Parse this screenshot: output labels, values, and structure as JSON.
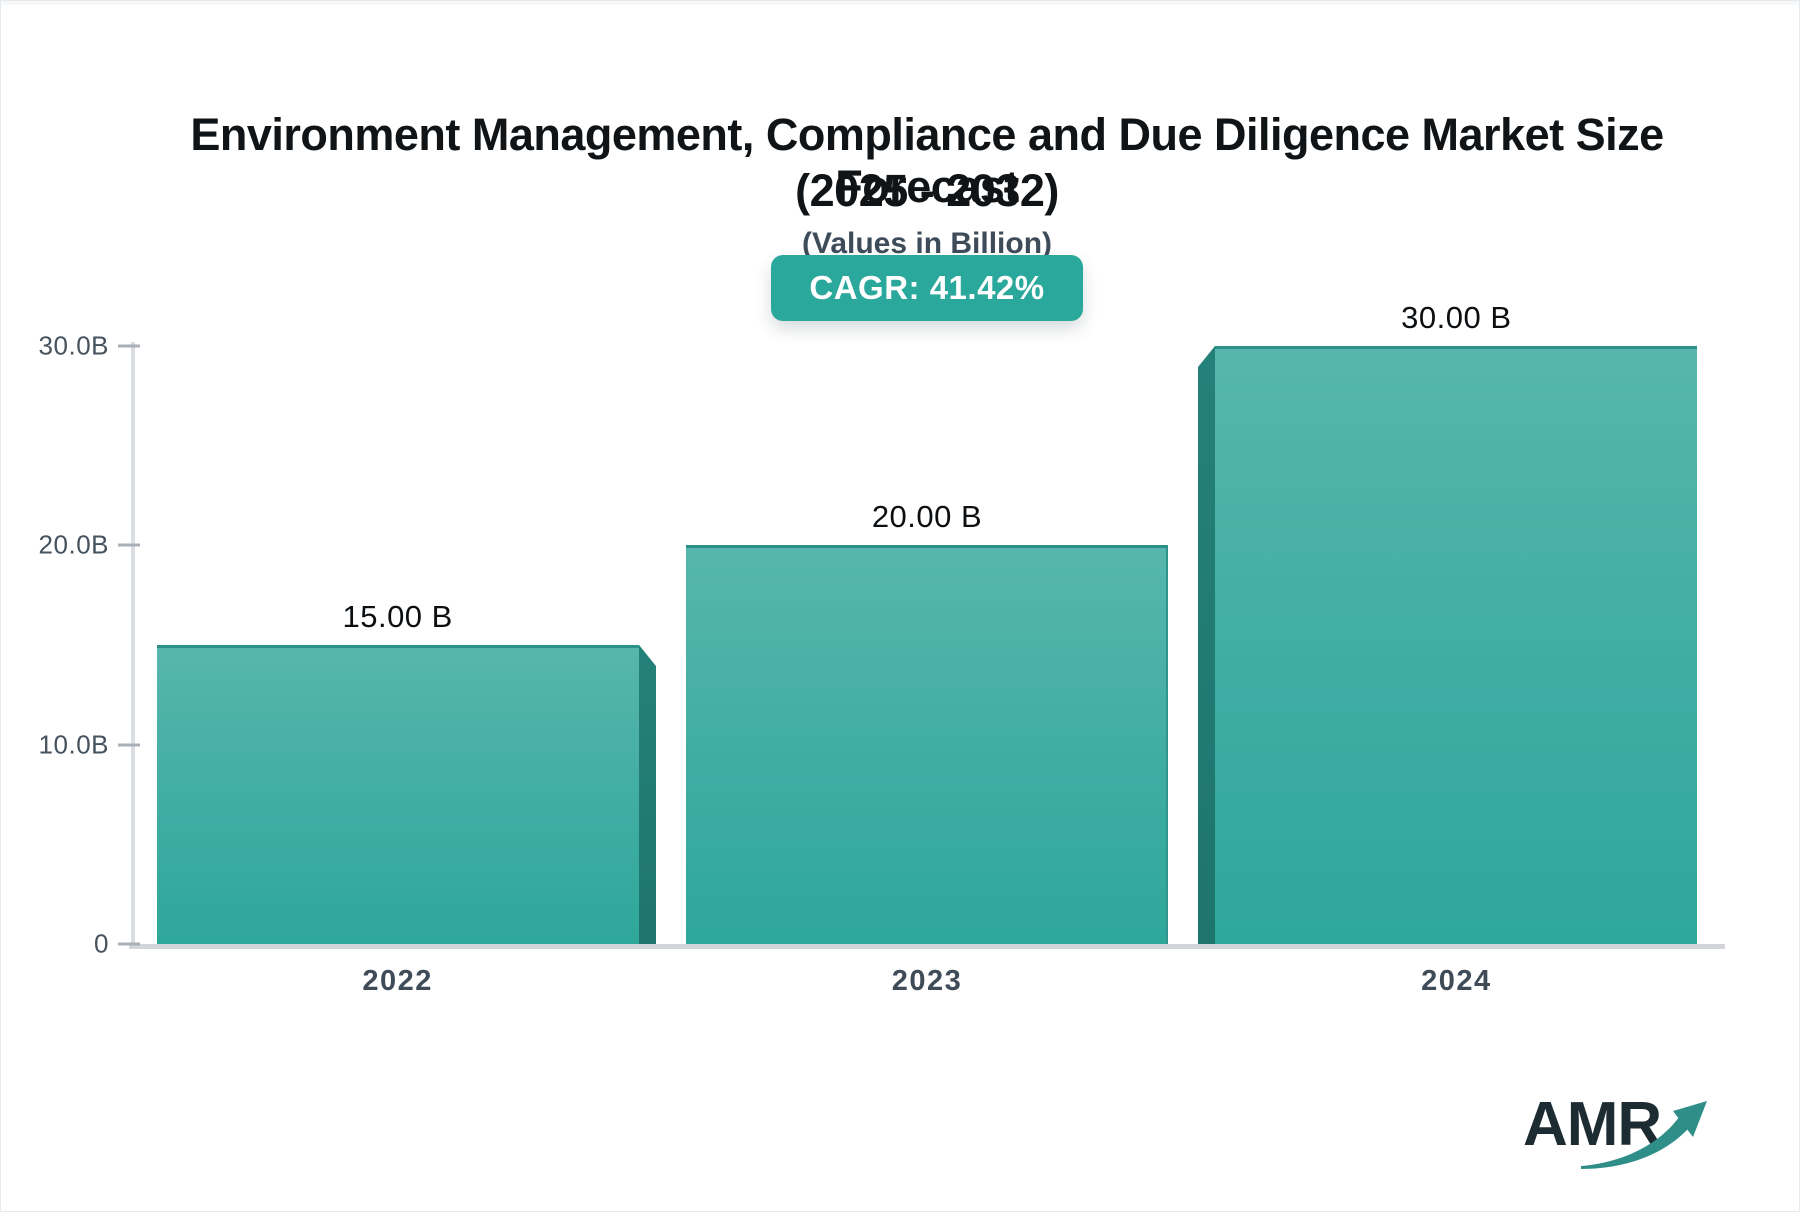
{
  "header": {
    "title_line1": "Environment Management, Compliance and Due Diligence Market Size Forecast",
    "title_line2": "(2025 - 2032)",
    "subtitle": "(Values in Billion)",
    "cagr_label": "CAGR: 41.42%"
  },
  "chart_data": {
    "type": "bar",
    "title": "Environment Management, Compliance and Due Diligence Market Size Forecast (2025 - 2032)",
    "subtitle": "(Values in Billion)",
    "cagr_percent": 41.42,
    "categories": [
      "2022",
      "2023",
      "2024"
    ],
    "values": [
      15,
      20,
      30
    ],
    "value_labels": [
      "15.00 B",
      "20.00 B",
      "30.00 B"
    ],
    "unit": "Billion",
    "ylim": [
      0,
      30
    ],
    "yticks": [
      {
        "label": "30.0B",
        "value": 30
      },
      {
        "label": "20.0B",
        "value": 20
      },
      {
        "label": "10.0B",
        "value": 10
      },
      {
        "label": "0",
        "value": 0
      }
    ],
    "grid": false,
    "legend": "none",
    "colors": {
      "bar_top": "#57b6ad",
      "bar_bottom": "#2ea79b",
      "bar_side_3d": "#1e756e",
      "bar_border": "#2b9189",
      "badge_background": "#2aa89c",
      "axis_line": "#d2d6da",
      "tick_text": "#46525e",
      "title_text": "#101417"
    }
  },
  "logo": {
    "text": "AMR"
  }
}
